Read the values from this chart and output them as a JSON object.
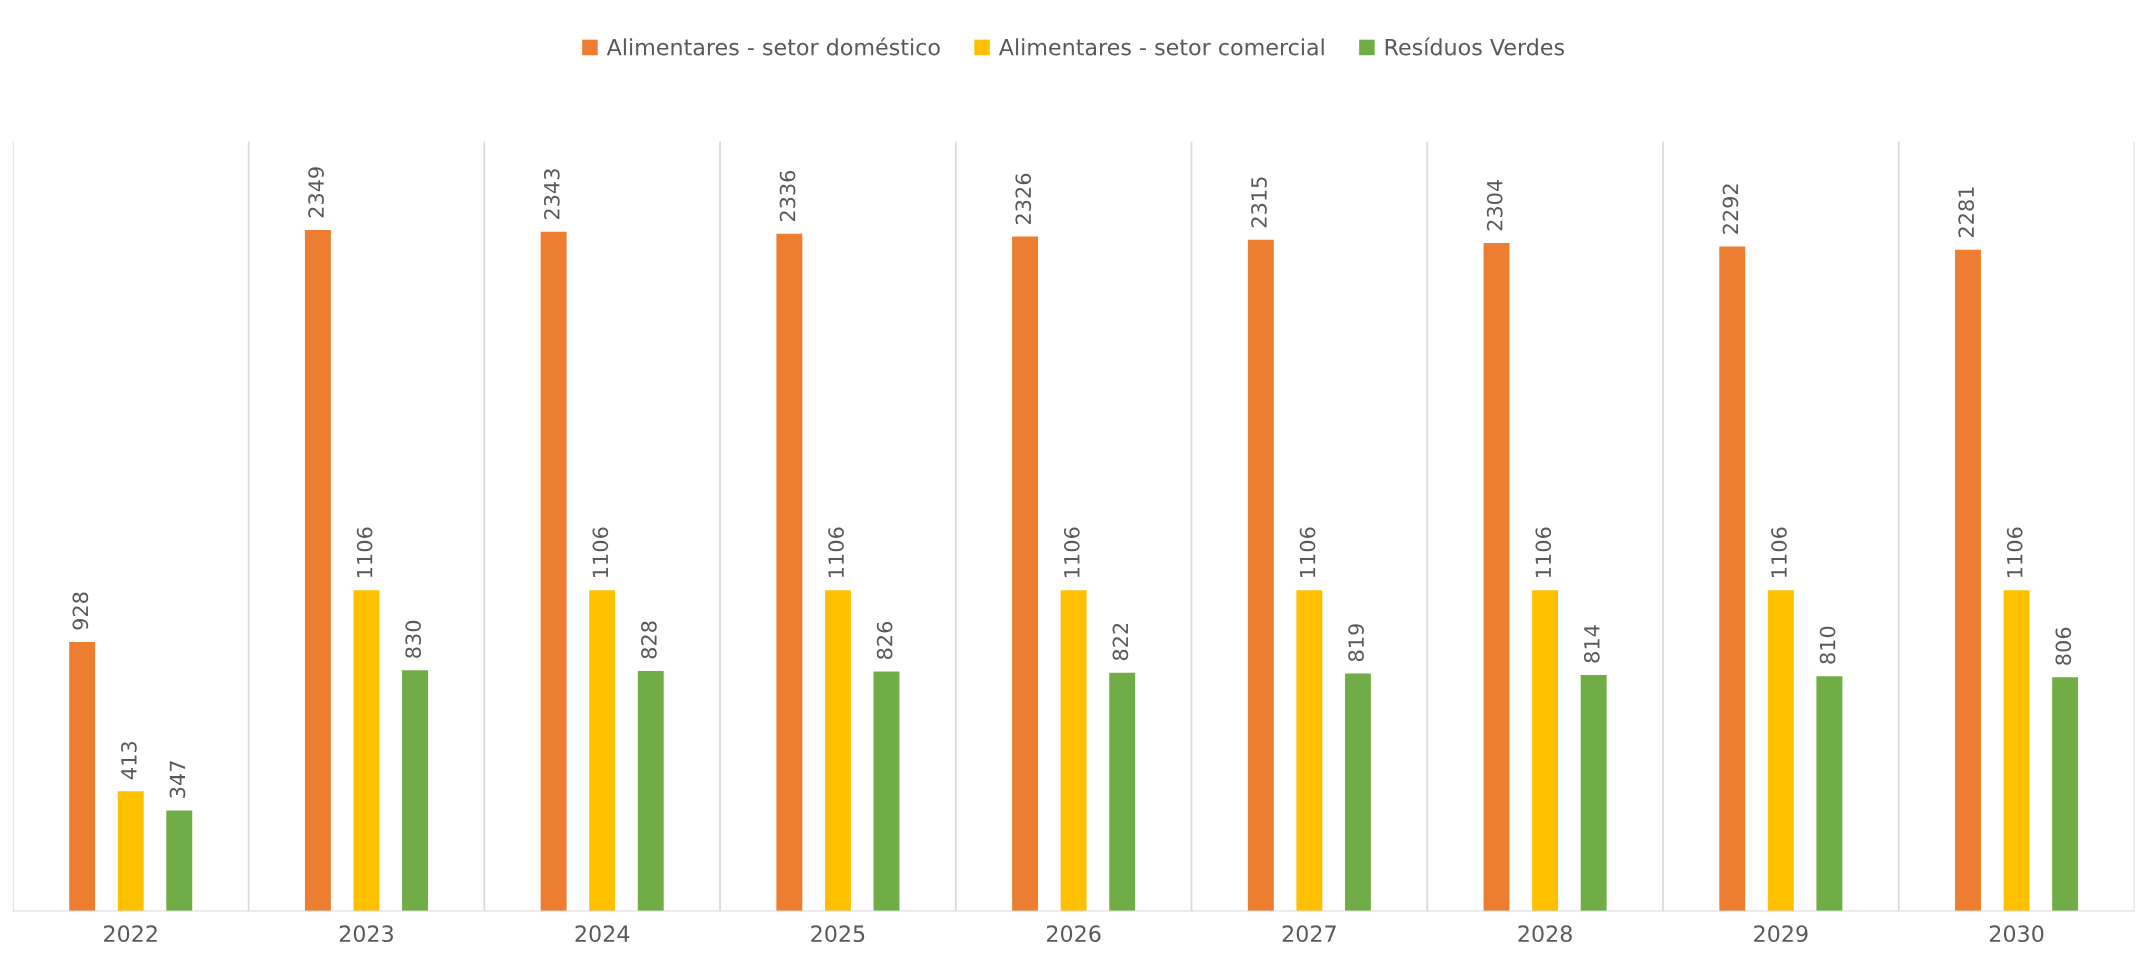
{
  "chart_data": {
    "type": "bar",
    "categories": [
      "2022",
      "2023",
      "2024",
      "2025",
      "2026",
      "2027",
      "2028",
      "2029",
      "2030"
    ],
    "series": [
      {
        "name": "Alimentares - setor doméstico",
        "color": "#ed7d31",
        "values": [
          928,
          2349,
          2343,
          2336,
          2326,
          2315,
          2304,
          2292,
          2281
        ]
      },
      {
        "name": "Alimentares - setor comercial",
        "color": "#ffc000",
        "values": [
          413,
          1106,
          1106,
          1106,
          1106,
          1106,
          1106,
          1106,
          1106
        ]
      },
      {
        "name": "Resíduos Verdes",
        "color": "#70ad47",
        "values": [
          347,
          830,
          828,
          826,
          822,
          819,
          814,
          810,
          806
        ]
      }
    ],
    "data_labels": true,
    "grid": "x",
    "legend": "top",
    "tick_labels": "x"
  }
}
